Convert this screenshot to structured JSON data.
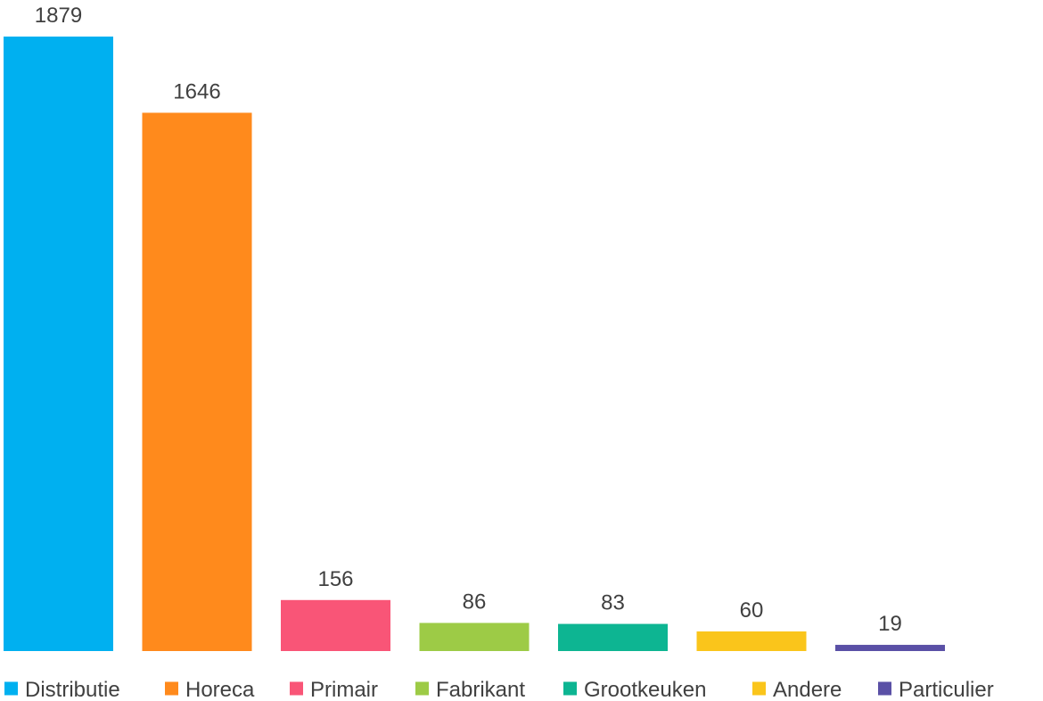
{
  "chart_data": {
    "type": "bar",
    "categories": [
      "Distributie",
      "Horeca",
      "Primair",
      "Fabrikant",
      "Grootkeuken",
      "Andere",
      "Particulier"
    ],
    "values": [
      1879,
      1646,
      156,
      86,
      83,
      60,
      19
    ],
    "colors": [
      "#00B0F0",
      "#FF8A1C",
      "#F95577",
      "#9DCB46",
      "#0DB592",
      "#FAC51B",
      "#5A50A6"
    ],
    "ylim": [
      0,
      1879
    ],
    "grid": false,
    "data_labels": true,
    "legend_position": "bottom",
    "title": "",
    "xlabel": "",
    "ylabel": ""
  }
}
